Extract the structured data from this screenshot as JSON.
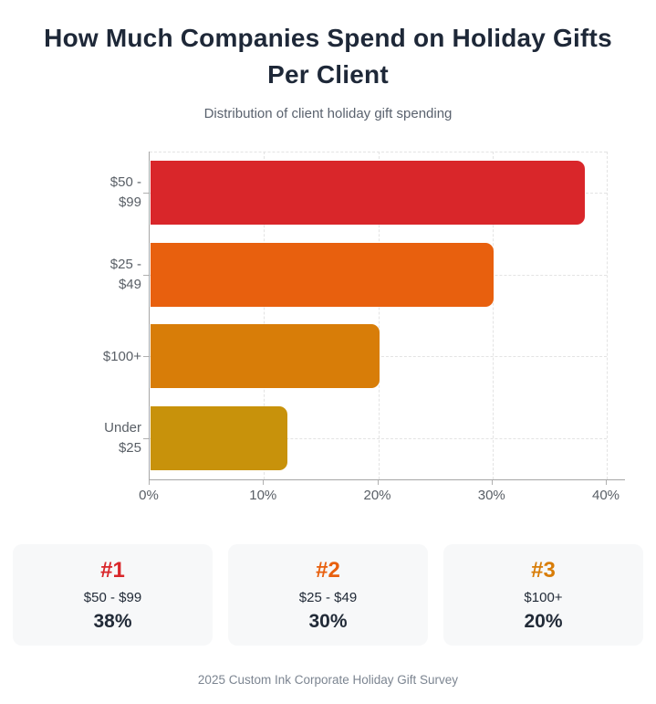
{
  "header": {
    "title": "How Much Companies Spend on Holiday Gifts Per Client",
    "subtitle": "Distribution of client holiday gift spending"
  },
  "chart_data": {
    "type": "bar",
    "orientation": "horizontal",
    "title": "How Much Companies Spend on Holiday Gifts Per Client",
    "subtitle": "Distribution of client holiday gift spending",
    "categories": [
      "$50 - $99",
      "$25 - $49",
      "$100+",
      "Under $25"
    ],
    "category_labels_wrapped": [
      [
        "$50 -",
        "$99"
      ],
      [
        "$25 -",
        "$49"
      ],
      [
        "$100+"
      ],
      [
        "Under",
        "$25"
      ]
    ],
    "values": [
      38,
      30,
      20,
      12
    ],
    "bar_colors": [
      "#d9262a",
      "#e8600e",
      "#d87d08",
      "#c8920b"
    ],
    "xlabel": "",
    "ylabel": "",
    "xlim": [
      0,
      40
    ],
    "x_tick_values": [
      0,
      10,
      20,
      30,
      40
    ],
    "x_tick_labels": [
      "0%",
      "10%",
      "20%",
      "30%",
      "40%"
    ],
    "grid": "dashed",
    "legend": "none"
  },
  "rank_cards": [
    {
      "rank": "#1",
      "label": "$50 - $99",
      "value": "38%",
      "color": "#d9262a"
    },
    {
      "rank": "#2",
      "label": "$25 - $49",
      "value": "30%",
      "color": "#e8600e"
    },
    {
      "rank": "#3",
      "label": "$100+",
      "value": "20%",
      "color": "#d87d08"
    }
  ],
  "footer": {
    "source": "2025 Custom Ink Corporate Holiday Gift Survey"
  },
  "colors": {
    "title_text": "#1e2838",
    "subtitle_text": "#5a626e",
    "axis_line": "#a6a6a6",
    "grid_line": "#e3e3e3",
    "axis_label_text": "#595f66",
    "card_background": "#f7f8f9",
    "card_text": "#222b38",
    "footer_text": "#7c8591"
  }
}
